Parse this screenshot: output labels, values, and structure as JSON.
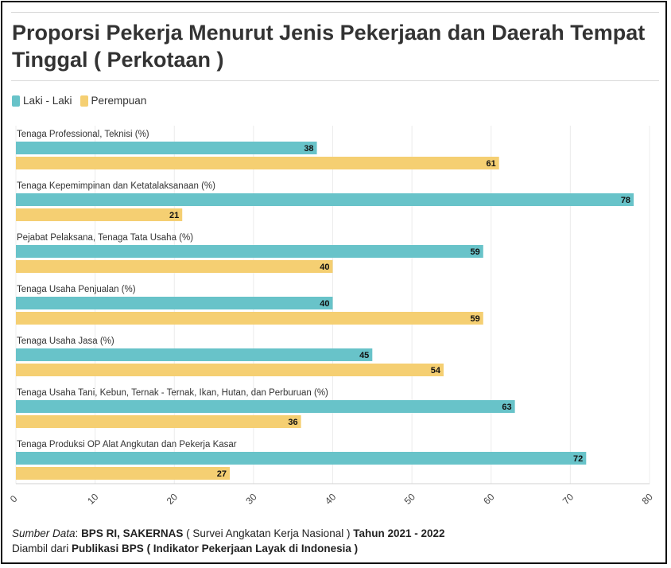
{
  "title": "Proporsi Pekerja Menurut Jenis Pekerjaan dan Daerah Tempat Tinggal ( Perkotaan )",
  "legend": {
    "items": [
      {
        "label": "Laki - Laki",
        "color": "#68c3c9"
      },
      {
        "label": "Perempuan",
        "color": "#f5cf72"
      }
    ]
  },
  "chart_data": {
    "type": "bar",
    "orientation": "horizontal",
    "categories": [
      "Tenaga Professional, Teknisi (%)",
      "Tenaga Kepemimpinan dan Ketatalaksanaan (%)",
      "Pejabat Pelaksana, Tenaga Tata Usaha (%)",
      "Tenaga Usaha Penjualan (%)",
      "Tenaga Usaha Jasa (%)",
      "Tenaga Usaha Tani, Kebun, Ternak - Ternak, Ikan, Hutan, dan Perburuan (%)",
      "Tenaga Produksi OP Alat Angkutan dan Pekerja Kasar"
    ],
    "series": [
      {
        "name": "Laki - Laki",
        "color": "#68c3c9",
        "values": [
          38,
          78,
          59,
          40,
          45,
          63,
          72
        ]
      },
      {
        "name": "Perempuan",
        "color": "#f5cf72",
        "values": [
          61,
          21,
          40,
          59,
          54,
          36,
          27
        ]
      }
    ],
    "xlim": [
      0,
      80
    ],
    "xticks": [
      0,
      10,
      20,
      30,
      40,
      50,
      60,
      70,
      80
    ],
    "grid": true,
    "legend_position": "top-left"
  },
  "footer": {
    "line1": {
      "source_label": "Sumber Data",
      "colon": ": ",
      "source": "BPS RI, SAKERNAS",
      "survey": " ( Survei Angkatan Kerja Nasional ) ",
      "years": "Tahun 2021 - 2022"
    },
    "line2": {
      "prefix": "Diambil dari ",
      "publication": "Publikasi BPS ( Indikator Pekerjaan Layak di Indonesia )"
    }
  }
}
